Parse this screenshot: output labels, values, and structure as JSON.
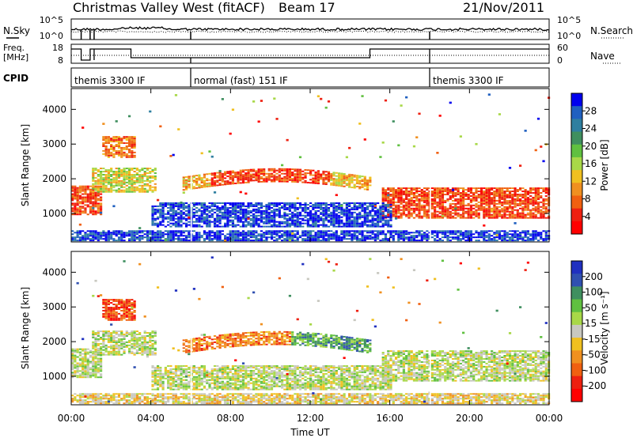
{
  "header": {
    "station": "Christmas Valley West (fitACF)",
    "beam": "Beam 17",
    "date": "21/Nov/2011"
  },
  "left_labels": {
    "nsky": "N.Sky",
    "freq_line1": "Freq.",
    "freq_line2": "[MHz]",
    "cpid": "CPID"
  },
  "right_labels": {
    "nsearch": "N.Search",
    "nave": "Nave"
  },
  "noise_axis": {
    "top": "10^5",
    "bottom": "10^0",
    "right_top": "10^5",
    "right_bottom": "10^0"
  },
  "freq_axis": {
    "left_ticks": [
      "18",
      "8"
    ],
    "right_ticks": [
      "60",
      "0"
    ]
  },
  "cpid_segments": [
    {
      "label": "themis 3300 IF",
      "start_hour": 0
    },
    {
      "label": "normal (fast) 151 IF",
      "start_hour": 6
    },
    {
      "label": "themis 3300 IF",
      "start_hour": 18
    }
  ],
  "chart_data": [
    {
      "type": "heatmap",
      "panel": "power",
      "ylabel": "Slant Range [km]",
      "ylim": [
        180,
        4600
      ],
      "y_ticks": [
        1000,
        2000,
        3000,
        4000
      ],
      "x_ticks": [
        "00:00",
        "04:00",
        "08:00",
        "12:00",
        "16:00",
        "20:00",
        "00:00"
      ],
      "xlim_hours": [
        0,
        24
      ],
      "colorbar": {
        "label": "Power [dB]",
        "ticks": [
          "4",
          "8",
          "12",
          "16",
          "20",
          "24",
          "28"
        ],
        "colors": [
          "#0000ee",
          "#2060c0",
          "#2f7fa0",
          "#3f8f5f",
          "#60c040",
          "#a8d848",
          "#f0c020",
          "#f09020",
          "#f06010",
          "#ee2010",
          "#ff0000"
        ]
      },
      "features": [
        {
          "name": "ionospheric band",
          "hours": [
            0,
            1.5
          ],
          "range_km": [
            1000,
            1700
          ],
          "level": "28"
        },
        {
          "name": "early echoes",
          "hours": [
            1.5,
            3.0
          ],
          "range_km": [
            2500,
            3200
          ],
          "level": "24"
        },
        {
          "name": "midday band",
          "hours": [
            6,
            15
          ],
          "range_km": [
            1700,
            2200
          ],
          "level": "24"
        },
        {
          "name": "evening band",
          "hours": [
            16,
            24
          ],
          "range_km": [
            900,
            1700
          ],
          "level": "28"
        }
      ]
    },
    {
      "type": "heatmap",
      "panel": "velocity",
      "ylabel": "Slant Range [km]",
      "ylim": [
        180,
        4600
      ],
      "y_ticks": [
        1000,
        2000,
        3000,
        4000
      ],
      "x_ticks": [
        "00:00",
        "04:00",
        "08:00",
        "12:00",
        "16:00",
        "20:00",
        "00:00"
      ],
      "xlim_hours": [
        0,
        24
      ],
      "xlabel": "Time UT",
      "colorbar": {
        "label": "Velocity [m s⁻¹]",
        "ticks": [
          "200",
          "100",
          "50",
          "15",
          "-15",
          "-50",
          "-100",
          "-200"
        ],
        "colors": [
          "#2030c0",
          "#3050b0",
          "#3f8f5f",
          "#60c040",
          "#a8d848",
          "#c8c8c0",
          "#f0c020",
          "#f09020",
          "#f06010",
          "#ee2010",
          "#ff0000"
        ]
      }
    }
  ]
}
